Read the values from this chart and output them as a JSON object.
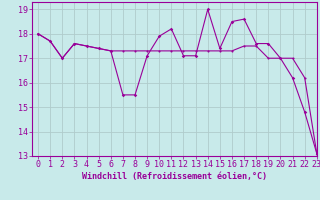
{
  "background_color": "#c8eaea",
  "grid_color": "#b0cccc",
  "line_color": "#990099",
  "marker_color": "#990099",
  "xlabel": "Windchill (Refroidissement éolien,°C)",
  "xlim": [
    -0.5,
    23
  ],
  "ylim": [
    13,
    19.3
  ],
  "yticks": [
    13,
    14,
    15,
    16,
    17,
    18,
    19
  ],
  "xticks": [
    0,
    1,
    2,
    3,
    4,
    5,
    6,
    7,
    8,
    9,
    10,
    11,
    12,
    13,
    14,
    15,
    16,
    17,
    18,
    19,
    20,
    21,
    22,
    23
  ],
  "series1_x": [
    0,
    1,
    2,
    3,
    4,
    5,
    6,
    7,
    8,
    9,
    10,
    11,
    12,
    13,
    14,
    15,
    16,
    17,
    18,
    19,
    20,
    21,
    22,
    23
  ],
  "series1_y": [
    18.0,
    17.7,
    17.0,
    17.6,
    17.5,
    17.4,
    17.3,
    17.3,
    17.3,
    17.3,
    17.3,
    17.3,
    17.3,
    17.3,
    17.3,
    17.3,
    17.3,
    17.5,
    17.5,
    17.0,
    17.0,
    17.0,
    16.2,
    13.1
  ],
  "series2_x": [
    0,
    1,
    2,
    3,
    4,
    5,
    6,
    7,
    8,
    9,
    10,
    11,
    12,
    13,
    14,
    15,
    16,
    17,
    18,
    19,
    20,
    21,
    22,
    23
  ],
  "series2_y": [
    18.0,
    17.7,
    17.0,
    17.6,
    17.5,
    17.4,
    17.3,
    15.5,
    15.5,
    17.1,
    17.9,
    18.2,
    17.1,
    17.1,
    19.0,
    17.4,
    18.5,
    18.6,
    17.6,
    17.6,
    17.0,
    16.2,
    14.8,
    13.1
  ],
  "xlabel_fontsize": 6,
  "tick_fontsize": 6,
  "xlabel_fontfamily": "monospace"
}
